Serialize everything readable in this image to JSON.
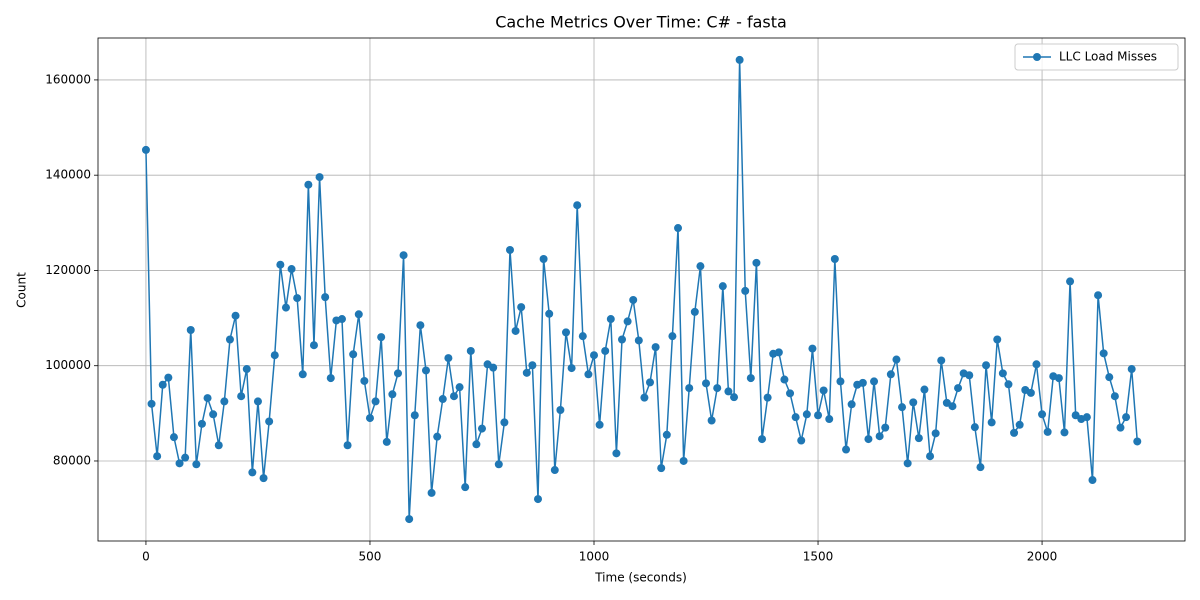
{
  "chart_data": {
    "type": "line",
    "title": "Cache Metrics Over Time: C# - fasta",
    "x_label": "Time (seconds)",
    "y_label": "Count",
    "x": [
      0,
      12.5,
      25,
      37.5,
      50,
      62.5,
      75,
      87.5,
      100,
      112.5,
      125,
      137.5,
      150,
      162.5,
      175,
      187.5,
      200,
      212.5,
      225,
      237.5,
      250,
      262.5,
      275,
      287.5,
      300,
      312.5,
      325,
      337.5,
      350,
      362.5,
      375,
      387.5,
      400,
      412.5,
      425,
      437.5,
      450,
      462.5,
      475,
      487.5,
      500,
      512.5,
      525,
      537.5,
      550,
      562.5,
      575,
      587.5,
      600,
      612.5,
      625,
      637.5,
      650,
      662.5,
      675,
      687.5,
      700,
      712.5,
      725,
      737.5,
      750,
      762.5,
      775,
      787.5,
      800,
      812.5,
      825,
      837.5,
      850,
      862.5,
      875,
      887.5,
      900,
      912.5,
      925,
      937.5,
      950,
      962.5,
      975,
      987.5,
      1000,
      1012.5,
      1025,
      1037.5,
      1050,
      1062.5,
      1075,
      1087.5,
      1100,
      1112.5,
      1125,
      1137.5,
      1150,
      1162.5,
      1175,
      1187.5,
      1200,
      1212.5,
      1225,
      1237.5,
      1250,
      1262.5,
      1275,
      1287.5,
      1300,
      1312.5,
      1325,
      1337.5,
      1350,
      1362.5,
      1375,
      1387.5,
      1400,
      1412.5,
      1425,
      1437.5,
      1450,
      1462.5,
      1475,
      1487.5,
      1500,
      1512.5,
      1525,
      1537.5,
      1550,
      1562.5,
      1575,
      1587.5,
      1600,
      1612.5,
      1625,
      1637.5,
      1650,
      1662.5,
      1675,
      1687.5,
      1700,
      1712.5,
      1725,
      1737.5,
      1750,
      1762.5,
      1775,
      1787.5,
      1800,
      1812.5,
      1825,
      1837.5,
      1850,
      1862.5,
      1875,
      1887.5,
      1900,
      1912.5,
      1925,
      1937.5,
      1950,
      1962.5,
      1975,
      1987.5,
      2000,
      2012.5,
      2025,
      2037.5,
      2050,
      2062.5,
      2075,
      2087.5,
      2100,
      2112.5,
      2125,
      2137.5,
      2150,
      2162.5,
      2175,
      2187.5,
      2200,
      2212.5
    ],
    "series": [
      {
        "name": "LLC Load Misses",
        "color": "#1f77b4",
        "values": [
          145300,
          92000,
          81000,
          96000,
          97500,
          85000,
          79500,
          80700,
          107500,
          79300,
          87800,
          93200,
          89800,
          83300,
          92500,
          105500,
          110500,
          93600,
          99300,
          77600,
          92500,
          76400,
          88300,
          102200,
          121200,
          112200,
          120300,
          114200,
          98200,
          138000,
          104300,
          139600,
          114400,
          97400,
          109500,
          109800,
          83300,
          102400,
          110800,
          96800,
          89000,
          92500,
          106000,
          84000,
          94000,
          98400,
          123200,
          67800,
          89600,
          108500,
          99000,
          73300,
          85100,
          93000,
          101600,
          93600,
          95500,
          74500,
          103100,
          83500,
          86800,
          100300,
          99600,
          79300,
          88100,
          124300,
          107300,
          112300,
          98500,
          100100,
          72000,
          122400,
          110900,
          78100,
          90700,
          107000,
          99500,
          133700,
          106200,
          98200,
          102200,
          87600,
          103100,
          109800,
          81600,
          105500,
          109300,
          113800,
          105300,
          93300,
          96500,
          103900,
          78500,
          85500,
          106200,
          128900,
          80000,
          95300,
          111300,
          120900,
          96300,
          88500,
          95300,
          116700,
          94600,
          93400,
          164200,
          115700,
          97400,
          121600,
          84600,
          93300,
          102500,
          102800,
          97100,
          94200,
          89200,
          84300,
          89800,
          103600,
          89600,
          94800,
          88800,
          122400,
          96700,
          82400,
          91900,
          96000,
          96400,
          84600,
          96700,
          85200,
          87000,
          98200,
          101300,
          91300,
          79500,
          92300,
          84800,
          95000,
          81000,
          85800,
          101100,
          92200,
          91500,
          95300,
          98400,
          98000,
          87100,
          78700,
          100100,
          88100,
          105500,
          98400,
          96100,
          85900,
          87600,
          94900,
          94300,
          100300,
          89800,
          86100,
          97800,
          97400,
          86000,
          117700,
          89600,
          88800,
          89200,
          76000,
          114800,
          102600,
          97600,
          93600,
          87000,
          89200,
          99300,
          84100
        ]
      }
    ],
    "xlim": [
      -107,
      2319
    ],
    "ylim": [
      63200,
      168800
    ],
    "xticks": [
      0,
      500,
      1000,
      1500,
      2000
    ],
    "yticks": [
      80000,
      100000,
      120000,
      140000,
      160000
    ],
    "grid": true,
    "legend": "upper right"
  }
}
